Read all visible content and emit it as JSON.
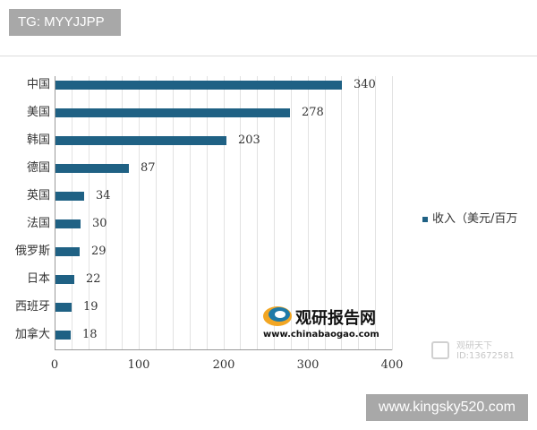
{
  "overlays": {
    "top_tag": "TG: MYYJJPP",
    "bottom_tag": "www.kingsky520.com"
  },
  "watermarks": {
    "logo_title": "观研报告网",
    "logo_url": "www.chinabaogao.com",
    "stamp_line1": "观研天下",
    "stamp_line2": "ID:13672581"
  },
  "legend": {
    "label": "收入（美元/百万"
  },
  "chart_data": {
    "type": "bar",
    "orientation": "horizontal",
    "title": "",
    "xlabel": "",
    "ylabel": "",
    "categories": [
      "中国",
      "美国",
      "韩国",
      "德国",
      "英国",
      "法国",
      "俄罗斯",
      "日本",
      "西班牙",
      "加拿大"
    ],
    "series": [
      {
        "name": "收入（美元/百万",
        "values": [
          340,
          278,
          203,
          87,
          34,
          30,
          29,
          22,
          19,
          18
        ],
        "color": "#1f6184"
      }
    ],
    "xlim": [
      0,
      400
    ],
    "x_ticks": [
      "0",
      "100",
      "200",
      "300",
      "400"
    ],
    "grid": true,
    "data_labels": true,
    "legend_position": "right"
  }
}
